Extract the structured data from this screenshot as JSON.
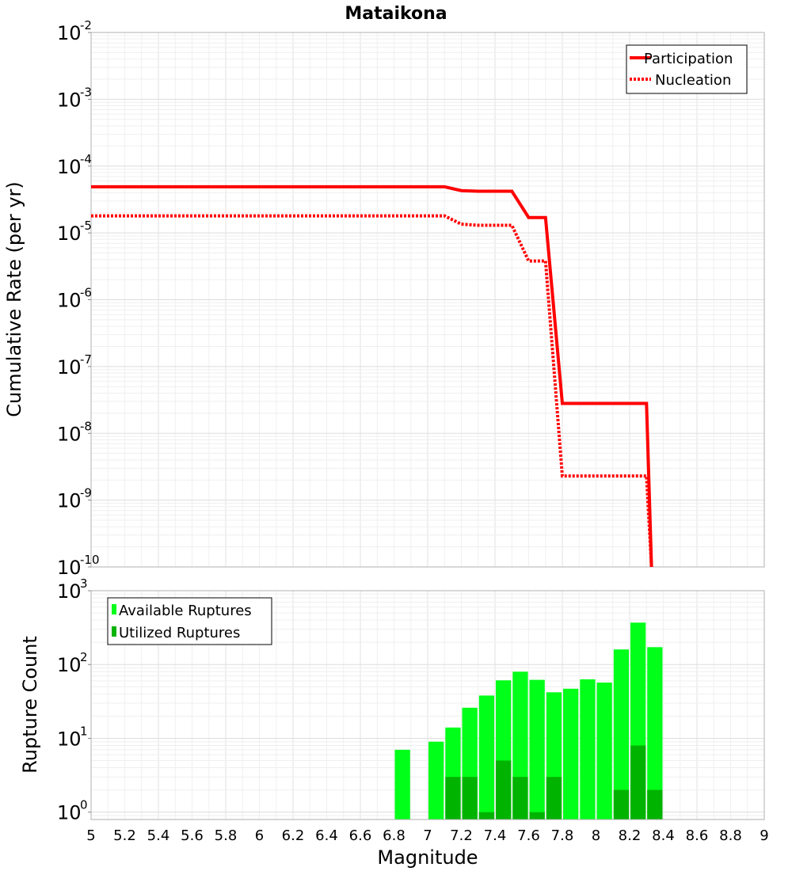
{
  "chart_data": [
    {
      "type": "line",
      "title": "Mataikona",
      "xlabel": "",
      "ylabel": "Cumulative Rate (per yr)",
      "xlim": [
        5,
        9
      ],
      "ylim_log10": [
        -10,
        -2
      ],
      "y_tick_exponents": [
        "-2",
        "-3",
        "-4",
        "-5",
        "-6",
        "-7",
        "-8",
        "-9",
        "-10"
      ],
      "y_scale": "log",
      "legend": {
        "position": "top-right",
        "entries": [
          "Participation",
          "Nucleation"
        ]
      },
      "series": [
        {
          "name": "Participation",
          "style": "solid",
          "color": "#ff0000",
          "x": [
            5.0,
            7.1,
            7.2,
            7.3,
            7.5,
            7.6,
            7.7,
            7.8,
            8.3,
            8.33
          ],
          "y": [
            4.9e-05,
            4.9e-05,
            4.3e-05,
            4.2e-05,
            4.2e-05,
            1.7e-05,
            1.7e-05,
            2.8e-08,
            2.8e-08,
            1e-10
          ]
        },
        {
          "name": "Nucleation",
          "style": "dotted",
          "color": "#ff0000",
          "x": [
            5.0,
            7.1,
            7.2,
            7.3,
            7.5,
            7.6,
            7.7,
            7.8,
            8.3,
            8.33
          ],
          "y": [
            1.8e-05,
            1.8e-05,
            1.35e-05,
            1.3e-05,
            1.3e-05,
            3.8e-06,
            3.8e-06,
            2.3e-09,
            2.3e-09,
            1e-10
          ]
        }
      ]
    },
    {
      "type": "bar",
      "title": "",
      "xlabel": "Magnitude",
      "ylabel": "Rupture Count",
      "xlim": [
        5,
        9
      ],
      "ylim_log10": [
        -0.1,
        3
      ],
      "y_tick_exponents": [
        "3",
        "2",
        "1",
        "0"
      ],
      "y_scale": "log",
      "x_tick_labels": [
        "5",
        "5.2",
        "5.4",
        "5.6",
        "5.8",
        "6",
        "6.2",
        "6.4",
        "6.6",
        "6.8",
        "7",
        "7.2",
        "7.4",
        "7.6",
        "7.8",
        "8",
        "8.2",
        "8.4",
        "8.6",
        "8.8",
        "9"
      ],
      "legend": {
        "position": "top-left",
        "entries": [
          "Available Ruptures",
          "Utilized Ruptures"
        ]
      },
      "categories": [
        6.85,
        7.05,
        7.15,
        7.25,
        7.35,
        7.45,
        7.55,
        7.65,
        7.75,
        7.85,
        7.95,
        8.05,
        8.15,
        8.25,
        8.35
      ],
      "series": [
        {
          "name": "Available Ruptures",
          "color": "#00ff19",
          "values": [
            7,
            9,
            14,
            26,
            38,
            61,
            80,
            62,
            42,
            47,
            63,
            57,
            160,
            370,
            172
          ]
        },
        {
          "name": "Utilized Ruptures",
          "color": "#00b300",
          "values": [
            0,
            0,
            3,
            3,
            1,
            5,
            3,
            1,
            3,
            0,
            0,
            0,
            2,
            8,
            2
          ]
        }
      ]
    }
  ]
}
